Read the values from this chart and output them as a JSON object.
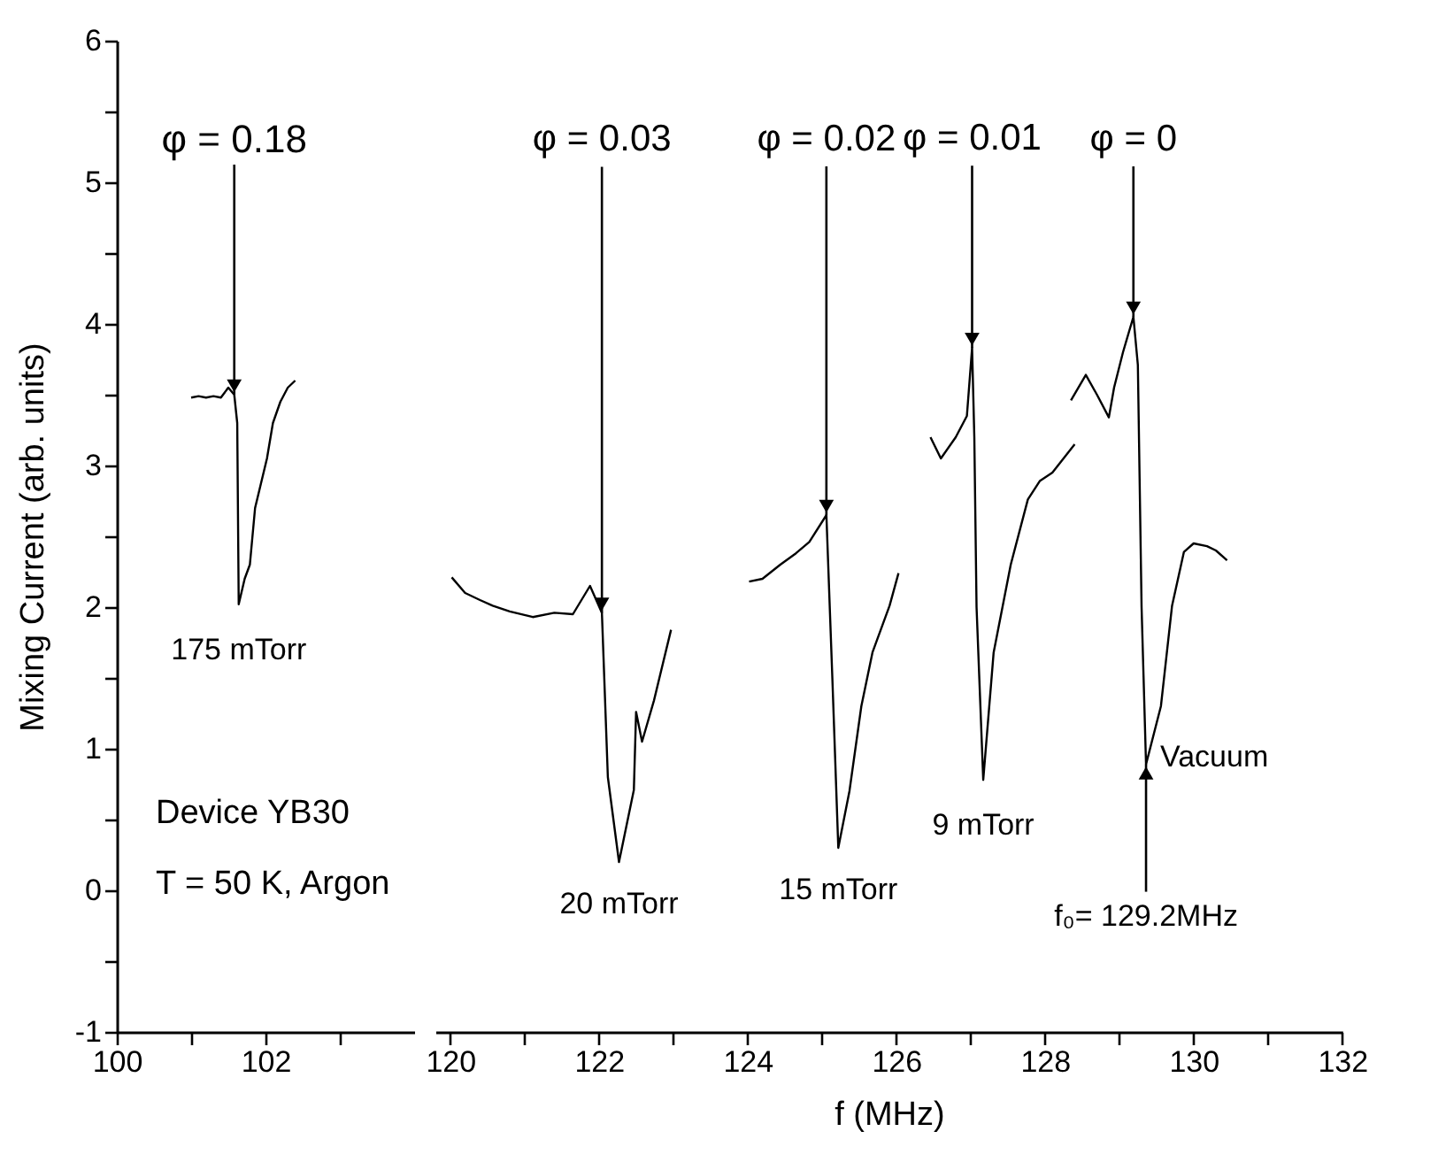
{
  "chart_data": [
    {
      "type": "line",
      "ylabel": "Mixing Current (arb. units)",
      "xlim": [
        100,
        104
      ],
      "ylim": [
        -1,
        6
      ],
      "xticks": [
        100,
        {
          "value": 101,
          "label": null
        },
        102,
        {
          "value": 103,
          "label": null
        }
      ],
      "yticks": [
        -1,
        {
          "value": -0.5,
          "label": null
        },
        0,
        {
          "value": 0.5,
          "label": null
        },
        1,
        {
          "value": 1.5,
          "label": null
        },
        2,
        {
          "value": 2.5,
          "label": null
        },
        3,
        {
          "value": 3.5,
          "label": null
        },
        4,
        {
          "value": 4.5,
          "label": null
        },
        5,
        {
          "value": 5.5,
          "label": null
        },
        6
      ],
      "series": [
        {
          "color": "#000000",
          "x": [
            101.0,
            101.1,
            101.2,
            101.3,
            101.4,
            101.5,
            101.58,
            101.62,
            101.64,
            101.72,
            101.79,
            101.86,
            102.02,
            102.1,
            102.2,
            102.3,
            102.4
          ],
          "values": [
            3.48,
            3.49,
            3.48,
            3.49,
            3.48,
            3.55,
            3.5,
            3.3,
            2.02,
            2.2,
            2.3,
            2.7,
            3.05,
            3.3,
            3.45,
            3.55,
            3.6
          ]
        }
      ],
      "annotations": [
        {
          "text": "φ = 0.18",
          "x": 101.58,
          "y": 3.5
        },
        {
          "text": "175 mTorr",
          "x": 101.64,
          "y": 2.02
        },
        "Device YB30",
        "T = 50 K, Argon"
      ]
    },
    {
      "type": "line",
      "xlabel": "f (MHz)",
      "xlim": [
        119.8,
        132
      ],
      "ylim": [
        -1,
        6
      ],
      "tick_labels": "x",
      "xticks": [
        120,
        {
          "value": 121,
          "label": null
        },
        122,
        {
          "value": 123,
          "label": null
        },
        124,
        {
          "value": 125,
          "label": null
        },
        126,
        {
          "value": 127,
          "label": null
        },
        128,
        {
          "value": 129,
          "label": null
        },
        130,
        {
          "value": 131,
          "label": null
        },
        132
      ],
      "series": [
        {
          "color": "#000000",
          "x": [
            120.02,
            120.2,
            120.4,
            120.57,
            120.8,
            121.11,
            121.4,
            121.65,
            121.88,
            122.04,
            122.12,
            122.27,
            122.47,
            122.5,
            122.58,
            122.74,
            122.97
          ],
          "values": [
            2.21,
            2.1,
            2.05,
            2.01,
            1.97,
            1.93,
            1.96,
            1.95,
            2.15,
            1.96,
            0.8,
            0.2,
            0.71,
            1.26,
            1.05,
            1.34,
            1.84
          ]
        },
        {
          "color": "#000000",
          "x": [
            124.02,
            124.2,
            124.44,
            124.65,
            124.83,
            125.06,
            125.14,
            125.22,
            125.37,
            125.53,
            125.68,
            125.91,
            126.03
          ],
          "values": [
            2.18,
            2.2,
            2.3,
            2.38,
            2.46,
            2.65,
            1.5,
            0.3,
            0.7,
            1.3,
            1.68,
            2.01,
            2.24
          ]
        },
        {
          "color": "#000000",
          "x": [
            126.46,
            126.6,
            126.8,
            126.95,
            127.02,
            127.05,
            127.08,
            127.17,
            127.31,
            127.54,
            127.77,
            127.93,
            128.1,
            128.25,
            128.4
          ],
          "values": [
            3.2,
            3.05,
            3.2,
            3.35,
            3.83,
            3.2,
            2.0,
            0.78,
            1.68,
            2.3,
            2.76,
            2.89,
            2.95,
            3.05,
            3.15
          ]
        },
        {
          "color": "#000000",
          "x": [
            128.35,
            128.55,
            128.7,
            128.86,
            128.93,
            129.05,
            129.19,
            129.25,
            129.3,
            129.36,
            129.56,
            129.71,
            129.87,
            130.0,
            130.18,
            130.3,
            130.45
          ],
          "values": [
            3.46,
            3.64,
            3.5,
            3.34,
            3.55,
            3.8,
            4.05,
            3.71,
            2.0,
            0.89,
            1.3,
            2.01,
            2.39,
            2.45,
            2.43,
            2.4,
            2.33
          ]
        }
      ],
      "annotations": [
        {
          "text": "φ = 0.03",
          "x": 122.04,
          "y": 1.96
        },
        {
          "text": "φ = 0.02",
          "x": 125.06,
          "y": 2.65
        },
        {
          "text": "φ = 0.01",
          "x": 127.02,
          "y": 3.83
        },
        {
          "text": "φ = 0",
          "x": 129.19,
          "y": 4.05
        },
        {
          "text": "20 mTorr",
          "x": 122.27,
          "y": 0.2
        },
        {
          "text": "15 mTorr",
          "x": 125.22,
          "y": 0.3
        },
        {
          "text": "9 mTorr",
          "x": 127.17,
          "y": 0.78
        },
        {
          "text": "Vacuum",
          "x": 129.36,
          "y": 0.89
        },
        {
          "text": "f₀= 129.2MHz",
          "x": 129.36,
          "y": 0.89
        }
      ]
    }
  ]
}
